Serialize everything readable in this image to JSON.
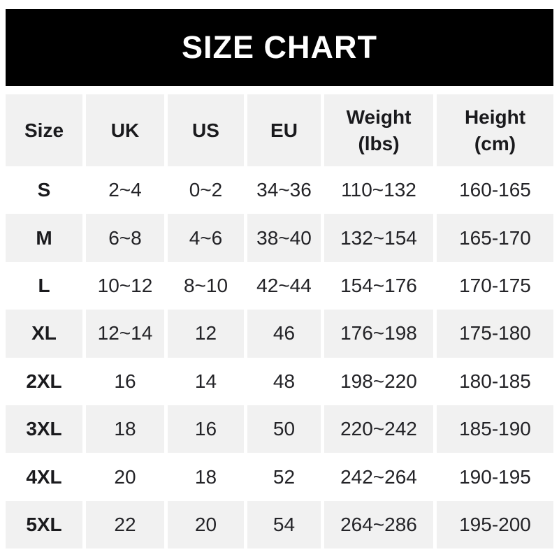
{
  "banner": {
    "title": "SIZE CHART",
    "background_color": "#000000",
    "text_color": "#ffffff"
  },
  "chart_data": {
    "type": "table",
    "title": "SIZE CHART",
    "columns": [
      "Size",
      "UK",
      "US",
      "EU",
      "Weight (lbs)",
      "Height (cm)"
    ],
    "rows": [
      {
        "size": "S",
        "uk": "2~4",
        "us": "0~2",
        "eu": "34~36",
        "weight_lbs": "110~132",
        "height_cm": "160-165"
      },
      {
        "size": "M",
        "uk": "6~8",
        "us": "4~6",
        "eu": "38~40",
        "weight_lbs": "132~154",
        "height_cm": "165-170"
      },
      {
        "size": "L",
        "uk": "10~12",
        "us": "8~10",
        "eu": "42~44",
        "weight_lbs": "154~176",
        "height_cm": "170-175"
      },
      {
        "size": "XL",
        "uk": "12~14",
        "us": "12",
        "eu": "46",
        "weight_lbs": "176~198",
        "height_cm": "175-180"
      },
      {
        "size": "2XL",
        "uk": "16",
        "us": "14",
        "eu": "48",
        "weight_lbs": "198~220",
        "height_cm": "180-185"
      },
      {
        "size": "3XL",
        "uk": "18",
        "us": "16",
        "eu": "50",
        "weight_lbs": "220~242",
        "height_cm": "185-190"
      },
      {
        "size": "4XL",
        "uk": "20",
        "us": "18",
        "eu": "52",
        "weight_lbs": "242~264",
        "height_cm": "190-195"
      },
      {
        "size": "5XL",
        "uk": "22",
        "us": "20",
        "eu": "54",
        "weight_lbs": "264~286",
        "height_cm": "195-200"
      }
    ],
    "layout": {
      "row_shading": "alternating",
      "shaded_rows": [
        "header",
        "M",
        "XL",
        "3XL",
        "5XL"
      ]
    }
  },
  "header_two_line": {
    "weight": [
      "Weight",
      "(lbs)"
    ],
    "height": [
      "Height",
      "(cm)"
    ]
  },
  "colors": {
    "row_shade": "#f1f1f1",
    "text": "#232327",
    "bold_text": "#1a1a1d",
    "page_background": "#ffffff"
  }
}
